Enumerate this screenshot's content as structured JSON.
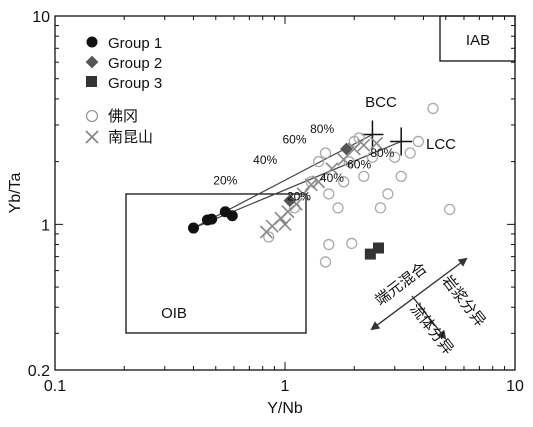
{
  "chart_data": {
    "type": "scatter",
    "x_scale": "log",
    "y_scale": "log",
    "xlabel": "Y/Nb",
    "ylabel": "Yb/Ta",
    "xlim": [
      0.1,
      10
    ],
    "ylim": [
      0.2,
      10
    ],
    "x_ticks": [
      {
        "value": 0.1,
        "label": "0.1"
      },
      {
        "value": 1,
        "label": "1"
      },
      {
        "value": 10,
        "label": "10"
      }
    ],
    "y_ticks": [
      {
        "value": 0.2,
        "label": "0.2"
      },
      {
        "value": 1,
        "label": "1"
      },
      {
        "value": 10,
        "label": "10"
      }
    ],
    "grid": false,
    "legend_position": "top-left",
    "series": [
      {
        "name": "Group 1",
        "marker": "filled-circle",
        "color": "#111111",
        "points": [
          [
            0.4,
            0.96
          ],
          [
            0.46,
            1.05
          ],
          [
            0.48,
            1.06
          ],
          [
            0.55,
            1.15
          ],
          [
            0.59,
            1.1
          ]
        ]
      },
      {
        "name": "Group 2",
        "marker": "filled-diamond",
        "color": "#555555",
        "points": [
          [
            1.05,
            1.3
          ],
          [
            1.85,
            2.3
          ]
        ]
      },
      {
        "name": "Group 3",
        "marker": "filled-square",
        "color": "#333333",
        "points": [
          [
            2.35,
            0.72
          ],
          [
            2.55,
            0.77
          ]
        ]
      },
      {
        "name": "佛冈",
        "marker": "open-circle",
        "color": "#aaaaaa",
        "points": [
          [
            0.85,
            0.87
          ],
          [
            1.1,
            1.2
          ],
          [
            1.3,
            1.6
          ],
          [
            1.4,
            2.0
          ],
          [
            1.5,
            2.2
          ],
          [
            1.55,
            1.4
          ],
          [
            1.7,
            1.2
          ],
          [
            1.8,
            1.6
          ],
          [
            1.9,
            2.0
          ],
          [
            2.0,
            2.5
          ],
          [
            2.1,
            2.6
          ],
          [
            2.2,
            1.7
          ],
          [
            2.4,
            2.1
          ],
          [
            2.6,
            1.2
          ],
          [
            2.8,
            1.4
          ],
          [
            3.0,
            2.1
          ],
          [
            3.2,
            1.7
          ],
          [
            3.5,
            2.2
          ],
          [
            3.8,
            2.5
          ],
          [
            4.4,
            3.6
          ],
          [
            5.2,
            1.18
          ],
          [
            1.95,
            0.81
          ],
          [
            1.5,
            0.66
          ],
          [
            1.55,
            0.8
          ]
        ]
      },
      {
        "name": "南昆山",
        "marker": "x",
        "color": "#888888",
        "points": [
          [
            0.83,
            0.92
          ],
          [
            0.88,
            0.98
          ],
          [
            0.96,
            1.07
          ],
          [
            1.0,
            1.0
          ],
          [
            1.03,
            1.15
          ],
          [
            1.12,
            1.25
          ],
          [
            1.2,
            1.4
          ],
          [
            1.3,
            1.55
          ],
          [
            1.4,
            1.6
          ],
          [
            1.6,
            1.85
          ],
          [
            1.8,
            2.05
          ],
          [
            2.0,
            2.3
          ],
          [
            2.2,
            2.4
          ],
          [
            2.5,
            2.45
          ]
        ]
      }
    ],
    "mixing_lines": [
      {
        "from": [
          0.4,
          0.96
        ],
        "to": [
          2.4,
          2.7
        ],
        "end_marker_label": "BCC"
      },
      {
        "from": [
          0.4,
          0.96
        ],
        "to": [
          3.2,
          2.5
        ],
        "end_marker_label": "LCC"
      }
    ],
    "annotations": {
      "percent_labels": [
        {
          "text": "20%",
          "at": [
            0.55,
            1.55
          ]
        },
        {
          "text": "40%",
          "at": [
            0.82,
            1.95
          ]
        },
        {
          "text": "60%",
          "at": [
            1.1,
            2.45
          ]
        },
        {
          "text": "80%",
          "at": [
            1.45,
            2.75
          ]
        },
        {
          "text": "20%",
          "at": [
            1.15,
            1.3
          ]
        },
        {
          "text": "40%",
          "at": [
            1.6,
            1.6
          ]
        },
        {
          "text": "60%",
          "at": [
            2.1,
            1.85
          ]
        },
        {
          "text": "80%",
          "at": [
            2.65,
            2.1
          ]
        }
      ],
      "end_member_labels": [
        {
          "text": "BCC",
          "at": [
            2.25,
            3.35
          ]
        },
        {
          "text": "LCC",
          "at": [
            3.6,
            2.45
          ]
        }
      ],
      "field_labels": [
        {
          "text": "IAB",
          "region": "top-right box"
        },
        {
          "text": "OIB",
          "region": "lower-left box"
        }
      ],
      "trend_arrows": [
        {
          "text": "端元混合"
        },
        {
          "text": "岩浆分异"
        },
        {
          "text": "流体分异"
        }
      ]
    }
  }
}
